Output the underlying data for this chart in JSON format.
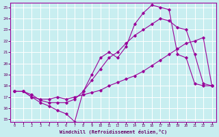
{
  "bg_color": "#c8eef0",
  "line_color": "#990099",
  "grid_color": "#ffffff",
  "xlabel": "Windchill (Refroidissement éolien,°C)",
  "xlabel_color": "#660066",
  "xtick_color": "#660066",
  "ytick_color": "#660066",
  "xlim": [
    -0.5,
    23.5
  ],
  "ylim": [
    14.8,
    25.4
  ],
  "yticks": [
    15,
    16,
    17,
    18,
    19,
    20,
    21,
    22,
    23,
    24,
    25
  ],
  "xticks": [
    0,
    1,
    2,
    3,
    4,
    5,
    6,
    7,
    8,
    9,
    10,
    11,
    12,
    13,
    14,
    15,
    16,
    17,
    18,
    19,
    20,
    21,
    22,
    23
  ],
  "line1_x": [
    0,
    1,
    2,
    3,
    4,
    5,
    6,
    7,
    8,
    9,
    10,
    11,
    12,
    13,
    14,
    15,
    16,
    17,
    18,
    19,
    20,
    21,
    22,
    23
  ],
  "line1_y": [
    17.5,
    17.5,
    17.0,
    16.5,
    16.2,
    15.8,
    15.5,
    14.8,
    17.5,
    19.0,
    20.5,
    21.0,
    20.5,
    21.5,
    23.5,
    24.5,
    25.2,
    25.0,
    24.8,
    20.8,
    20.5,
    18.2,
    18.0,
    18.0
  ],
  "line2_x": [
    0,
    1,
    2,
    3,
    4,
    5,
    6,
    7,
    8,
    9,
    10,
    11,
    12,
    13,
    14,
    15,
    16,
    17,
    18,
    19,
    20,
    21,
    22,
    23
  ],
  "line2_y": [
    17.5,
    17.5,
    17.0,
    16.8,
    16.8,
    17.0,
    16.8,
    17.0,
    17.2,
    17.4,
    17.6,
    18.0,
    18.3,
    18.6,
    18.9,
    19.3,
    19.8,
    20.3,
    20.8,
    21.3,
    21.8,
    22.0,
    22.3,
    18.0
  ],
  "line3_x": [
    0,
    1,
    2,
    3,
    4,
    5,
    6,
    7,
    8,
    9,
    10,
    11,
    12,
    13,
    14,
    15,
    16,
    17,
    18,
    19,
    20,
    21,
    22,
    23
  ],
  "line3_y": [
    17.5,
    17.5,
    17.2,
    16.7,
    16.5,
    16.5,
    16.5,
    16.8,
    17.5,
    18.5,
    19.5,
    20.5,
    21.0,
    21.8,
    22.5,
    23.0,
    23.5,
    24.0,
    23.8,
    23.2,
    23.0,
    20.8,
    18.2,
    18.0
  ]
}
